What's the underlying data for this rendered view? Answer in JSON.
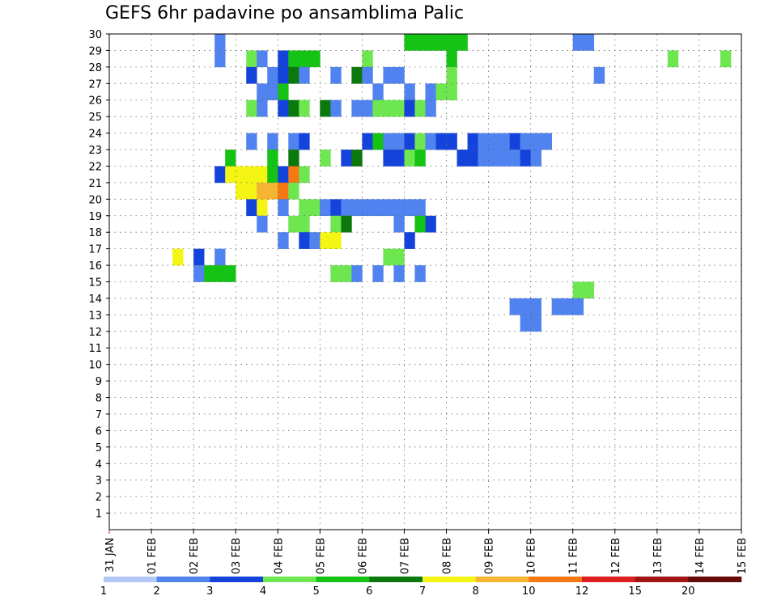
{
  "chart_data": {
    "type": "heatmap",
    "title": "GEFS 6hr padavine po ansamblima Palic",
    "x_axis": {
      "tick_labels": [
        "31 JAN",
        "01 FEB",
        "02 FEB",
        "03 FEB",
        "04 FEB",
        "05 FEB",
        "06 FEB",
        "07 FEB",
        "08 FEB",
        "09 FEB",
        "10 FEB",
        "11 FEB",
        "12 FEB",
        "13 FEB",
        "14 FEB",
        "15 FEB"
      ],
      "steps_per_day": 4,
      "total_steps": 60
    },
    "y_axis": {
      "tick_labels": [
        "1",
        "2",
        "3",
        "4",
        "5",
        "6",
        "7",
        "8",
        "9",
        "10",
        "11",
        "12",
        "13",
        "14",
        "15",
        "16",
        "17",
        "18",
        "19",
        "20",
        "21",
        "22",
        "23",
        "24",
        "25",
        "26",
        "27",
        "28",
        "29",
        "30"
      ],
      "range": [
        0,
        30
      ]
    },
    "grid": true,
    "legend": {
      "placement": "bottom",
      "labels": [
        "1",
        "2",
        "3",
        "4",
        "5",
        "6",
        "7",
        "8",
        "10",
        "12",
        "15",
        "20"
      ],
      "colors": [
        "#b4c8f5",
        "#5082f0",
        "#1443dc",
        "#6ee650",
        "#14c314",
        "#0a780a",
        "#f5f514",
        "#f5b432",
        "#f57814",
        "#dc1e1e",
        "#a01414",
        "#640a0a"
      ]
    },
    "cells": [
      [
        0,
        10,
        1
      ],
      [
        1,
        10,
        1
      ],
      [
        3,
        25,
        1
      ],
      [
        4,
        25,
        3
      ],
      [
        0,
        28,
        4
      ],
      [
        0,
        29,
        4
      ],
      [
        0,
        30,
        4
      ],
      [
        0,
        31,
        4
      ],
      [
        0,
        32,
        4
      ],
      [
        0,
        33,
        4
      ],
      [
        0,
        44,
        1
      ],
      [
        0,
        45,
        1
      ],
      [
        1,
        13,
        3
      ],
      [
        1,
        14,
        1
      ],
      [
        1,
        16,
        2
      ],
      [
        1,
        17,
        4
      ],
      [
        1,
        18,
        4
      ],
      [
        1,
        19,
        4
      ],
      [
        1,
        24,
        3
      ],
      [
        1,
        32,
        4
      ],
      [
        1,
        53,
        3
      ],
      [
        1,
        58,
        3
      ],
      [
        2,
        13,
        2
      ],
      [
        2,
        15,
        1
      ],
      [
        2,
        16,
        2
      ],
      [
        2,
        17,
        5
      ],
      [
        2,
        18,
        1
      ],
      [
        2,
        21,
        1
      ],
      [
        2,
        23,
        5
      ],
      [
        2,
        24,
        1
      ],
      [
        2,
        26,
        1
      ],
      [
        2,
        27,
        1
      ],
      [
        2,
        32,
        3
      ],
      [
        2,
        46,
        1
      ],
      [
        3,
        14,
        1
      ],
      [
        3,
        15,
        1
      ],
      [
        3,
        16,
        4
      ],
      [
        3,
        28,
        1
      ],
      [
        3,
        30,
        1
      ],
      [
        3,
        31,
        3
      ],
      [
        3,
        32,
        3
      ],
      [
        4,
        13,
        3
      ],
      [
        4,
        14,
        1
      ],
      [
        4,
        16,
        2
      ],
      [
        4,
        17,
        5
      ],
      [
        4,
        18,
        3
      ],
      [
        4,
        20,
        5
      ],
      [
        4,
        21,
        1
      ],
      [
        4,
        23,
        1
      ],
      [
        4,
        24,
        1
      ],
      [
        4,
        25,
        3
      ],
      [
        4,
        26,
        3
      ],
      [
        4,
        27,
        3
      ],
      [
        4,
        28,
        2
      ],
      [
        4,
        29,
        3
      ],
      [
        4,
        30,
        1
      ],
      [
        6,
        13,
        1
      ],
      [
        6,
        15,
        1
      ],
      [
        6,
        17,
        1
      ],
      [
        6,
        18,
        2
      ],
      [
        6,
        24,
        2
      ],
      [
        6,
        25,
        4
      ],
      [
        6,
        26,
        1
      ],
      [
        6,
        27,
        1
      ],
      [
        6,
        28,
        2
      ],
      [
        6,
        29,
        3
      ],
      [
        6,
        30,
        1
      ],
      [
        6,
        31,
        2
      ],
      [
        6,
        32,
        2
      ],
      [
        6,
        34,
        2
      ],
      [
        6,
        35,
        1
      ],
      [
        6,
        36,
        1
      ],
      [
        6,
        37,
        1
      ],
      [
        6,
        38,
        2
      ],
      [
        6,
        39,
        1
      ],
      [
        6,
        40,
        1
      ],
      [
        6,
        41,
        1
      ],
      [
        7,
        11,
        4
      ],
      [
        7,
        15,
        4
      ],
      [
        7,
        17,
        5
      ],
      [
        7,
        20,
        3
      ],
      [
        7,
        22,
        2
      ],
      [
        7,
        23,
        5
      ],
      [
        7,
        26,
        2
      ],
      [
        7,
        27,
        2
      ],
      [
        7,
        28,
        3
      ],
      [
        7,
        29,
        4
      ],
      [
        7,
        33,
        2
      ],
      [
        7,
        34,
        2
      ],
      [
        7,
        35,
        1
      ],
      [
        7,
        36,
        1
      ],
      [
        7,
        37,
        1
      ],
      [
        7,
        38,
        1
      ],
      [
        7,
        39,
        2
      ],
      [
        7,
        40,
        1
      ],
      [
        8,
        10,
        2
      ],
      [
        8,
        11,
        6
      ],
      [
        8,
        12,
        6
      ],
      [
        8,
        13,
        6
      ],
      [
        8,
        14,
        6
      ],
      [
        8,
        15,
        4
      ],
      [
        8,
        16,
        2
      ],
      [
        8,
        17,
        8
      ],
      [
        8,
        18,
        3
      ],
      [
        9,
        12,
        6
      ],
      [
        9,
        13,
        6
      ],
      [
        9,
        14,
        7
      ],
      [
        9,
        15,
        7
      ],
      [
        9,
        16,
        8
      ],
      [
        9,
        17,
        3
      ],
      [
        10,
        13,
        2
      ],
      [
        10,
        14,
        6
      ],
      [
        10,
        16,
        1
      ],
      [
        10,
        18,
        3
      ],
      [
        10,
        19,
        3
      ],
      [
        10,
        20,
        1
      ],
      [
        10,
        21,
        2
      ],
      [
        10,
        22,
        1
      ],
      [
        10,
        23,
        1
      ],
      [
        10,
        24,
        1
      ],
      [
        10,
        25,
        1
      ],
      [
        10,
        26,
        1
      ],
      [
        10,
        27,
        1
      ],
      [
        10,
        28,
        1
      ],
      [
        10,
        29,
        1
      ],
      [
        11,
        14,
        1
      ],
      [
        11,
        17,
        3
      ],
      [
        11,
        18,
        3
      ],
      [
        11,
        21,
        3
      ],
      [
        11,
        22,
        5
      ],
      [
        11,
        27,
        1
      ],
      [
        11,
        29,
        4
      ],
      [
        11,
        30,
        2
      ],
      [
        12,
        16,
        1
      ],
      [
        12,
        18,
        2
      ],
      [
        12,
        19,
        1
      ],
      [
        12,
        20,
        6
      ],
      [
        12,
        21,
        6
      ],
      [
        12,
        28,
        2
      ],
      [
        13,
        6,
        6
      ],
      [
        13,
        8,
        2
      ],
      [
        13,
        10,
        1
      ],
      [
        13,
        26,
        3
      ],
      [
        13,
        27,
        3
      ],
      [
        14,
        8,
        1
      ],
      [
        14,
        9,
        4
      ],
      [
        14,
        10,
        4
      ],
      [
        14,
        11,
        4
      ],
      [
        14,
        21,
        3
      ],
      [
        14,
        22,
        3
      ],
      [
        14,
        23,
        1
      ],
      [
        14,
        25,
        1
      ],
      [
        14,
        27,
        1
      ],
      [
        14,
        29,
        1
      ],
      [
        15,
        44,
        3
      ],
      [
        15,
        45,
        3
      ],
      [
        16,
        38,
        1
      ],
      [
        16,
        39,
        1
      ],
      [
        16,
        40,
        1
      ],
      [
        16,
        42,
        1
      ],
      [
        16,
        43,
        1
      ],
      [
        16,
        44,
        1
      ],
      [
        17,
        39,
        1
      ],
      [
        17,
        40,
        1
      ]
    ]
  }
}
